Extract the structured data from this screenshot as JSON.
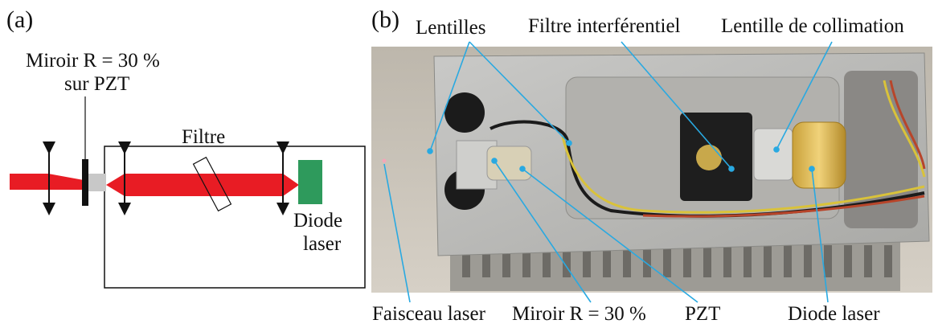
{
  "panel_a": {
    "tag": "(a)",
    "mirror_label_line1": "Miroir R = 30 %",
    "mirror_label_line2": "sur PZT",
    "filter_label": "Filtre",
    "diode_label_line1": "Diode",
    "diode_label_line2": "laser",
    "colors": {
      "beam": "#e81c24",
      "diode": "#2e9a5c",
      "pzt": "#c8c8c8",
      "mirror": "#111111"
    }
  },
  "panel_b": {
    "tag": "(b)",
    "labels": {
      "lenses": "Lentilles",
      "interference_filter": "Filtre interférentiel",
      "collimation_lens": "Lentille de collimation",
      "laser_beam": "Faisceau laser",
      "mirror": "Miroir R = 30 %",
      "pzt": "PZT",
      "laser_diode": "Diode laser"
    },
    "colors": {
      "pointer": "#29a9e1"
    }
  }
}
